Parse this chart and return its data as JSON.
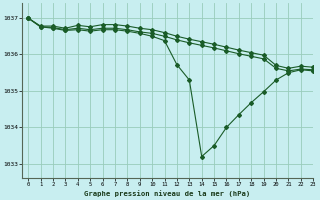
{
  "bg_color": "#c8eef0",
  "grid_color": "#99ccbb",
  "line_color": "#1a5c28",
  "title": "Graphe pression niveau de la mer (hPa)",
  "xlim": [
    -0.5,
    23
  ],
  "ylim": [
    1032.6,
    1037.4
  ],
  "yticks": [
    1033,
    1034,
    1035,
    1036,
    1037
  ],
  "xticks": [
    0,
    1,
    2,
    3,
    4,
    5,
    6,
    7,
    8,
    9,
    10,
    11,
    12,
    13,
    14,
    15,
    16,
    17,
    18,
    19,
    20,
    21,
    22,
    23
  ],
  "series1": {
    "x": [
      0,
      1,
      2,
      3,
      4,
      5,
      6,
      7,
      8,
      9,
      10,
      11,
      12,
      13,
      14,
      15,
      16,
      17,
      18,
      19,
      20,
      21,
      22,
      23
    ],
    "y": [
      1037.0,
      1036.78,
      1036.78,
      1036.72,
      1036.8,
      1036.76,
      1036.82,
      1036.82,
      1036.78,
      1036.72,
      1036.68,
      1036.6,
      1036.5,
      1036.42,
      1036.35,
      1036.28,
      1036.2,
      1036.12,
      1036.05,
      1035.98,
      1035.7,
      1035.62,
      1035.68,
      1035.65
    ]
  },
  "series2": {
    "x": [
      0,
      1,
      2,
      3,
      4,
      5,
      6,
      7,
      8,
      9,
      10,
      11,
      12,
      13,
      14,
      15,
      16,
      17,
      18,
      19,
      20,
      21,
      22,
      23
    ],
    "y": [
      1037.0,
      1036.76,
      1036.74,
      1036.68,
      1036.72,
      1036.68,
      1036.72,
      1036.72,
      1036.68,
      1036.62,
      1036.58,
      1036.5,
      1036.4,
      1036.32,
      1036.25,
      1036.18,
      1036.1,
      1036.02,
      1035.95,
      1035.88,
      1035.62,
      1035.55,
      1035.6,
      1035.58
    ]
  },
  "series3": {
    "x": [
      0,
      1,
      2,
      3,
      4,
      5,
      6,
      7,
      8,
      9,
      10,
      11,
      12,
      13,
      14,
      15,
      16,
      17,
      18,
      19,
      20,
      21,
      22,
      23
    ],
    "y": [
      1037.0,
      1036.76,
      1036.72,
      1036.66,
      1036.68,
      1036.64,
      1036.68,
      1036.68,
      1036.64,
      1036.58,
      1036.5,
      1036.38,
      1035.72,
      1035.3,
      1033.2,
      1033.5,
      1034.0,
      1034.35,
      1034.68,
      1034.98,
      1035.3,
      1035.5,
      1035.58,
      1035.55
    ]
  }
}
